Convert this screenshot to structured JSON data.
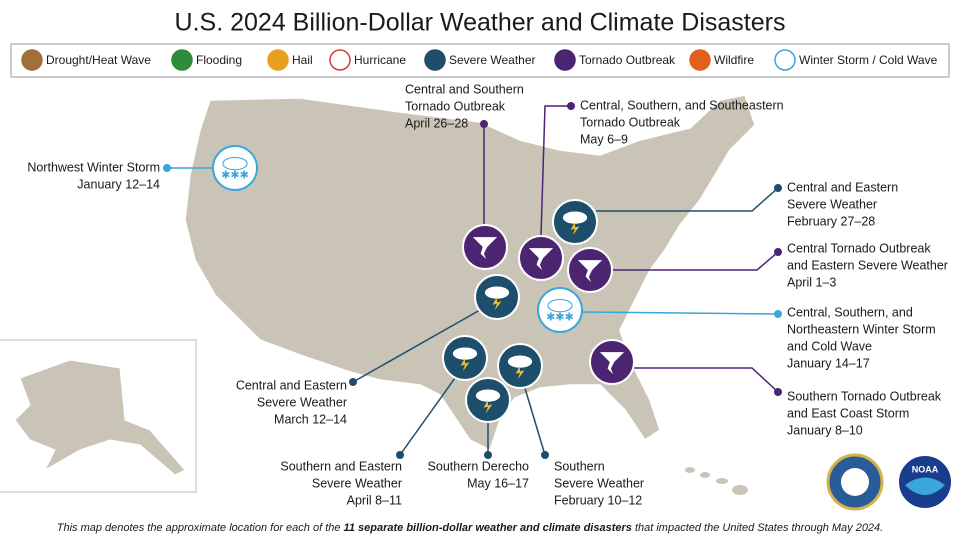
{
  "title": "U.S. 2024 Billion-Dollar Weather and Climate Disasters",
  "legend": [
    {
      "name": "Drought/Heat Wave",
      "color": "#a0703a"
    },
    {
      "name": "Flooding",
      "color": "#2e8b3a"
    },
    {
      "name": "Hail",
      "color": "#e8a020"
    },
    {
      "name": "Hurricane",
      "color": "#d83a3a"
    },
    {
      "name": "Severe Weather",
      "color": "#1d4e6b"
    },
    {
      "name": "Tornado Outbreak",
      "color": "#4b2472"
    },
    {
      "name": "Wildfire",
      "color": "#e06020"
    },
    {
      "name": "Winter Storm / Cold Wave",
      "color": "#3aa6dd"
    }
  ],
  "events": [
    {
      "kind": "Winter Storm / Cold Wave",
      "lines": [
        "Northwest Winter Storm",
        "January 12–14"
      ]
    },
    {
      "kind": "Tornado Outbreak",
      "lines": [
        "Central and Southern",
        "Tornado Outbreak",
        "April 26–28"
      ]
    },
    {
      "kind": "Tornado Outbreak",
      "lines": [
        "Central, Southern, and Southeastern",
        "Tornado Outbreak",
        "May 6–9"
      ]
    },
    {
      "kind": "Severe Weather",
      "lines": [
        "Central and Eastern",
        "Severe Weather",
        "February 27–28"
      ]
    },
    {
      "kind": "Tornado Outbreak",
      "lines": [
        "Central Tornado Outbreak",
        "and Eastern Severe Weather",
        "April 1–3"
      ]
    },
    {
      "kind": "Winter Storm / Cold Wave",
      "lines": [
        "Central, Southern, and",
        "Northeastern Winter Storm",
        "and Cold Wave",
        "January 14–17"
      ]
    },
    {
      "kind": "Tornado Outbreak",
      "lines": [
        "Southern Tornado Outbreak",
        "and East Coast Storm",
        "January 8–10"
      ]
    },
    {
      "kind": "Severe Weather",
      "lines": [
        "Central and Eastern",
        "Severe Weather",
        "March 12–14"
      ]
    },
    {
      "kind": "Severe Weather",
      "lines": [
        "Southern and Eastern",
        "Severe Weather",
        "April 8–11"
      ]
    },
    {
      "kind": "Severe Weather",
      "lines": [
        "Southern Derecho",
        "May 16–17"
      ]
    },
    {
      "kind": "Severe Weather",
      "lines": [
        "Southern",
        "Severe Weather",
        "February 10–12"
      ]
    }
  ],
  "footer": {
    "before": "This map denotes the approximate location for each of the ",
    "bold": "11 separate billion-dollar weather and climate disasters",
    "after": " that impacted the United States through May 2024."
  },
  "logos": {
    "noaa": "NOAA"
  }
}
